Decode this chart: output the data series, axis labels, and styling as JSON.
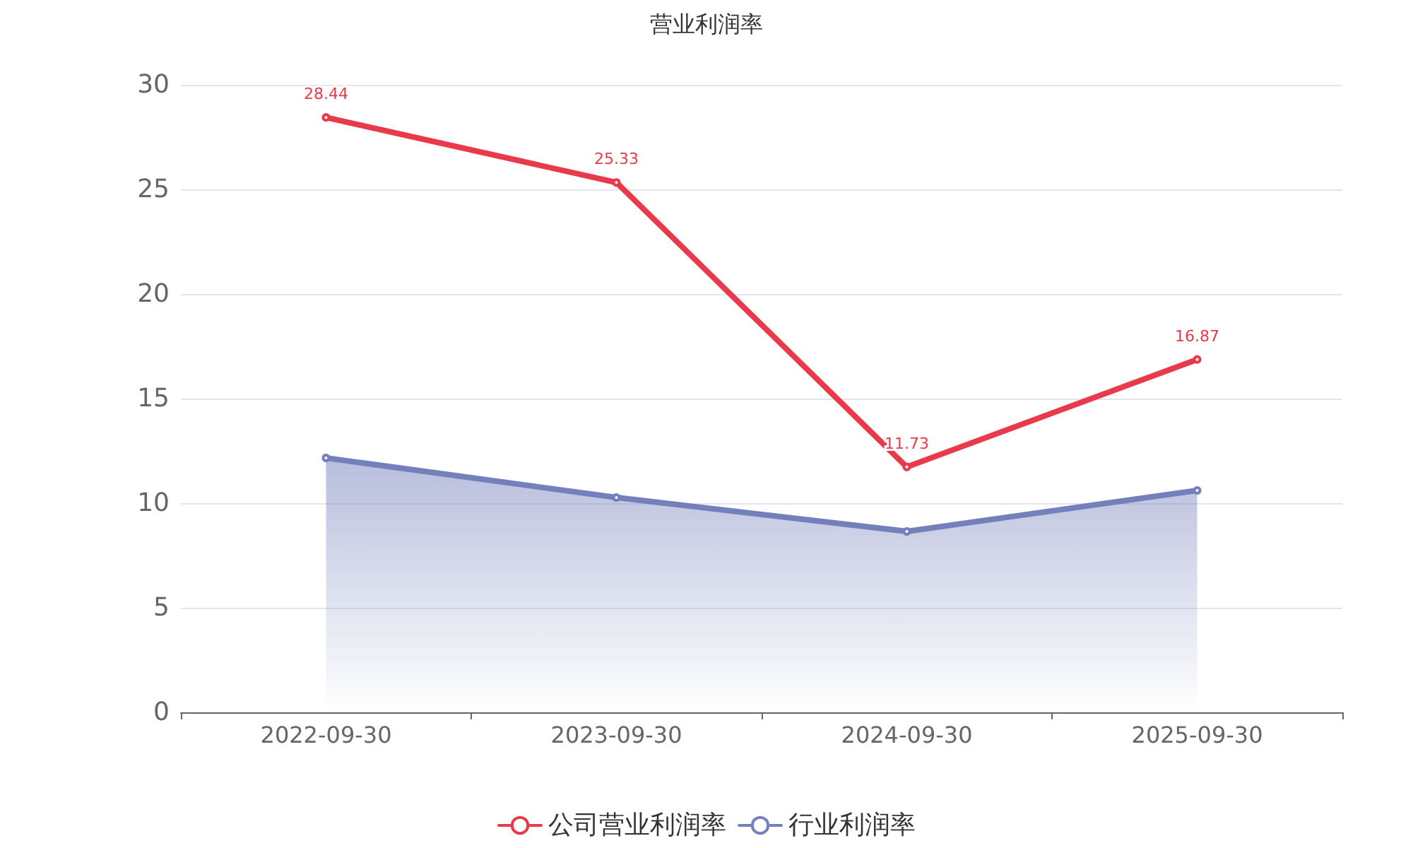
{
  "chart_data": {
    "type": "line",
    "title": "营业利润率",
    "categories": [
      "2022-09-30",
      "2023-09-30",
      "2024-09-30",
      "2025-09-30"
    ],
    "series": [
      {
        "name": "公司营业利润率",
        "color": "#e83a4b",
        "values": [
          28.44,
          25.33,
          11.73,
          16.87
        ],
        "value_labels": [
          "28.44",
          "25.33",
          "11.73",
          "16.87"
        ]
      },
      {
        "name": "行业利润率",
        "type": "area",
        "color": "#7480bb",
        "values": [
          12.16,
          10.27,
          8.65,
          10.61
        ]
      }
    ],
    "ylim": [
      0,
      30
    ],
    "yticks": [
      0,
      5,
      10,
      15,
      20,
      25,
      30
    ],
    "grid": "y",
    "legend": "bottom",
    "marker": "circle",
    "line_style": "solid"
  }
}
